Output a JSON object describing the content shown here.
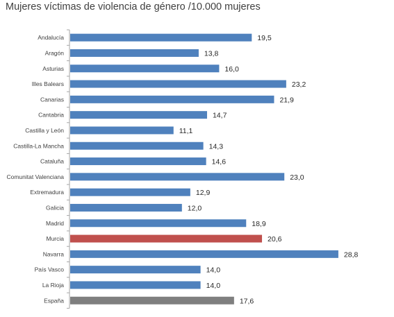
{
  "chart_data": {
    "type": "bar",
    "orientation": "horizontal",
    "title": "Mujeres víctimas de violencia de género /10.000 mujeres",
    "categories": [
      "Andalucía",
      "Aragón",
      "Asturias",
      "Illes Balears",
      "Canarias",
      "Cantabria",
      "Castilla y León",
      "Castilla-La Mancha",
      "Cataluña",
      "Comunitat Valenciana",
      "Extremadura",
      "Galicia",
      "Madrid",
      "Murcia",
      "Navarra",
      "País Vasco",
      "La Rioja",
      "España"
    ],
    "values": [
      19.5,
      13.8,
      16.0,
      23.2,
      21.9,
      14.7,
      11.1,
      14.3,
      14.6,
      23.0,
      12.9,
      12.0,
      18.9,
      20.6,
      28.8,
      14.0,
      14.0,
      17.6
    ],
    "value_labels": [
      "19,5",
      "13,8",
      "16,0",
      "23,2",
      "21,9",
      "14,7",
      "11,1",
      "14,3",
      "14,6",
      "23,0",
      "12,9",
      "12,0",
      "18,9",
      "20,6",
      "28,8",
      "14,0",
      "14,0",
      "17,6"
    ],
    "colors": {
      "default": "#4f81bd",
      "highlight": "#c0504d",
      "total": "#7f7f7f",
      "axis": "#a6a6a6"
    },
    "highlight_category": "Murcia",
    "total_category": "España",
    "xlim": [
      0,
      30
    ],
    "grid": false,
    "legend": "none"
  }
}
